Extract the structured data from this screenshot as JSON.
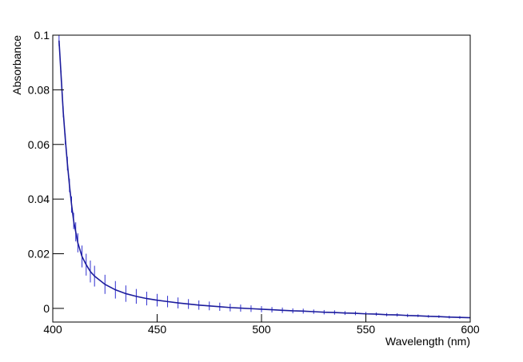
{
  "chart_data": {
    "type": "line",
    "x_label": "Wavelength (nm)",
    "y_label": "Absorbance",
    "x": [
      403,
      404,
      405,
      406,
      407,
      408,
      409,
      410,
      411,
      412,
      414,
      416,
      418,
      420,
      425,
      430,
      435,
      440,
      445,
      450,
      455,
      460,
      465,
      470,
      475,
      480,
      485,
      490,
      495,
      500,
      505,
      510,
      515,
      520,
      525,
      530,
      535,
      540,
      545,
      550,
      555,
      560,
      565,
      570,
      575,
      580,
      585,
      590,
      595,
      600
    ],
    "series": [
      {
        "color": "#1c1c9c",
        "values": [
          0.098,
          0.085,
          0.072,
          0.062,
          0.053,
          0.045,
          0.038,
          0.032,
          0.028,
          0.024,
          0.019,
          0.016,
          0.0135,
          0.0118,
          0.0088,
          0.0068,
          0.0054,
          0.0044,
          0.0036,
          0.003,
          0.0025,
          0.002,
          0.0016,
          0.0012,
          0.0009,
          0.0006,
          0.0003,
          0.0001,
          -0.0001,
          -0.0003,
          -0.0005,
          -0.0007,
          -0.0009,
          -0.001,
          -0.0012,
          -0.0014,
          -0.0015,
          -0.0017,
          -0.0018,
          -0.002,
          -0.0021,
          -0.0023,
          -0.0024,
          -0.0026,
          -0.0027,
          -0.0029,
          -0.003,
          -0.0032,
          -0.0033,
          -0.0034
        ],
        "errors": [
          0.002,
          0.002,
          0.002,
          0.002,
          0.0025,
          0.0025,
          0.003,
          0.003,
          0.0035,
          0.0035,
          0.004,
          0.004,
          0.004,
          0.0038,
          0.0035,
          0.0032,
          0.003,
          0.0027,
          0.0025,
          0.0023,
          0.0021,
          0.002,
          0.0018,
          0.0017,
          0.0016,
          0.0015,
          0.0014,
          0.0013,
          0.0012,
          0.0011,
          0.001,
          0.001,
          0.0009,
          0.0009,
          0.0008,
          0.0008,
          0.0008,
          0.0007,
          0.0007,
          0.0007,
          0.0006,
          0.0006,
          0.0006,
          0.0006,
          0.0005,
          0.0005,
          0.0005,
          0.0005,
          0.0005,
          0.0005
        ],
        "error_color": "#3030d0"
      }
    ],
    "xlim": [
      400,
      600
    ],
    "xticks": [
      400,
      450,
      500,
      550,
      600
    ],
    "ylim": [
      -0.005,
      0.1
    ],
    "yticks": [
      0,
      0.02,
      0.04,
      0.06,
      0.08,
      0.1
    ],
    "grid": false
  }
}
